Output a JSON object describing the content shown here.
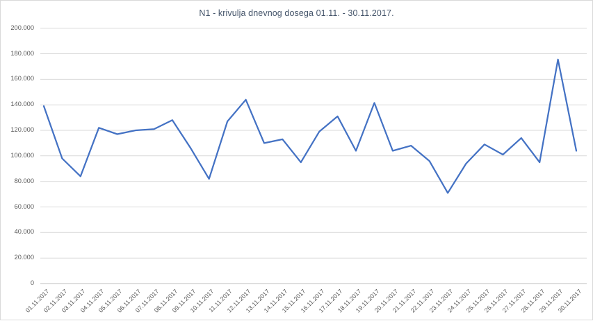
{
  "chart": {
    "title_color": "#44546a"
  },
  "chart_data": {
    "type": "line",
    "title": "N1 - krivulja dnevnog dosega 01.11. - 30.11.2017.",
    "xlabel": "",
    "ylabel": "",
    "categories": [
      "01.11.2017",
      "02.11.2017",
      "03.11.2017",
      "04.11.2017",
      "05.11.2017",
      "06.11.2017",
      "07.11.2017",
      "08.11.2017",
      "09.11.2017",
      "10.11.2017",
      "11.11.2017",
      "12.11.2017",
      "13.11.2017",
      "14.11.2017",
      "15.11.2017",
      "16.11.2017",
      "17.11.2017",
      "18.11.2017",
      "19.11.2017",
      "20.11.2017",
      "21.11.2017",
      "22.11.2017",
      "23.11.2017",
      "24.11.2017",
      "25.11.2017",
      "26.11.2017",
      "27.11.2017",
      "28.11.2017",
      "29.11.2017",
      "30.11.2017"
    ],
    "values": [
      139000,
      98000,
      84000,
      122000,
      117000,
      120000,
      121000,
      128000,
      106000,
      82000,
      127000,
      144000,
      110000,
      113000,
      95000,
      119000,
      131000,
      104000,
      141500,
      104000,
      108000,
      96000,
      71000,
      94000,
      109000,
      101000,
      114000,
      95000,
      175500,
      104000
    ],
    "ylim": [
      0,
      200000
    ],
    "ytick_step": 20000,
    "ytick_labels": [
      "0",
      "20.000",
      "40.000",
      "60.000",
      "80.000",
      "100.000",
      "120.000",
      "140.000",
      "160.000",
      "180.000",
      "200.000"
    ],
    "grid": "horizontal-only",
    "legend": "none",
    "series_color": "#4472c4",
    "colors": {
      "grid": "#d9d9d9",
      "axis": "#bfbfbf",
      "tick_text": "#595959",
      "title_text": "#44546a",
      "border": "#d9d9d9",
      "background": "#ffffff"
    }
  }
}
